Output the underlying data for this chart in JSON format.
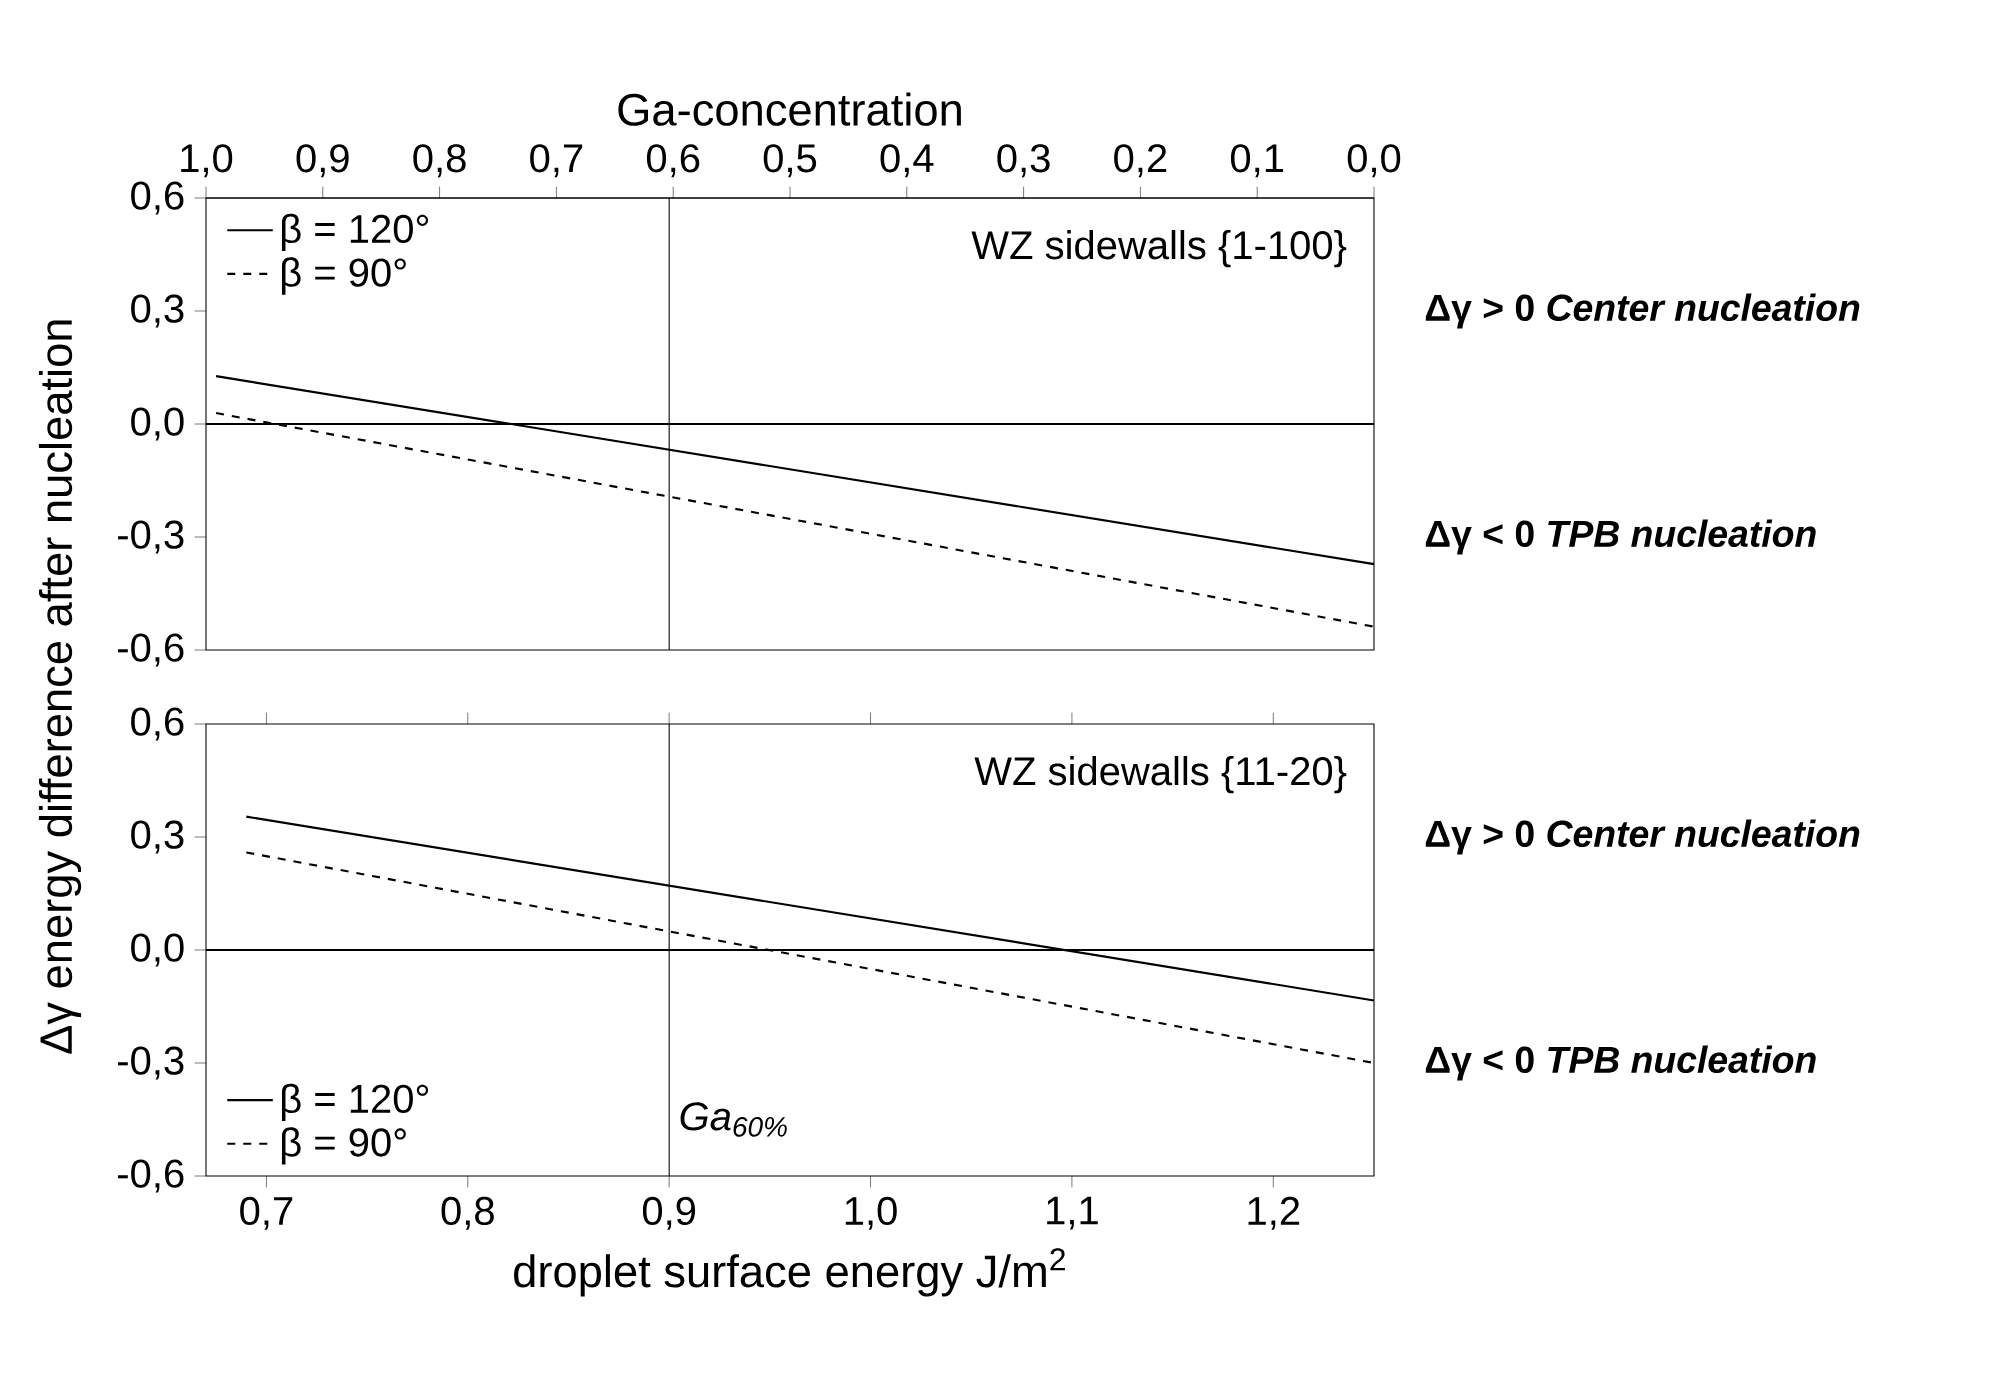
{
  "chart_data": [
    {
      "type": "line",
      "title": "WZ sidewalls {1-100}",
      "ylabel": "Δγ energy difference after nucleation",
      "x2label": "Ga-concentration",
      "xlim": [
        0.67,
        1.25
      ],
      "x2lim": [
        1.0,
        0.0
      ],
      "x2ticks": [
        {
          "value": 1.0,
          "label": "1,0"
        },
        {
          "value": 0.9,
          "label": "0,9"
        },
        {
          "value": 0.8,
          "label": "0,8"
        },
        {
          "value": 0.7,
          "label": "0,7"
        },
        {
          "value": 0.6,
          "label": "0,6"
        },
        {
          "value": 0.5,
          "label": "0,5"
        },
        {
          "value": 0.4,
          "label": "0,4"
        },
        {
          "value": 0.3,
          "label": "0,3"
        },
        {
          "value": 0.2,
          "label": "0,2"
        },
        {
          "value": 0.1,
          "label": "0,1"
        },
        {
          "value": 0.0,
          "label": "0,0"
        }
      ],
      "ylim": [
        -0.6,
        0.6
      ],
      "yticks": [
        {
          "value": -0.6,
          "label": "-0,6"
        },
        {
          "value": -0.3,
          "label": "-0,3"
        },
        {
          "value": 0.0,
          "label": "0,0"
        },
        {
          "value": 0.3,
          "label": "0,3"
        },
        {
          "value": 0.6,
          "label": "0,6"
        }
      ],
      "tick_labels": "y",
      "legend": "top left",
      "series": [
        {
          "name": "β = 120°",
          "color": "#000000",
          "line_style": "solid",
          "x": [
            0.675,
            1.25
          ],
          "values": [
            0.127,
            -0.372
          ]
        },
        {
          "name": "β =  90°",
          "color": "#000000",
          "line_style": "dashed",
          "x": [
            0.675,
            1.25
          ],
          "values": [
            0.029,
            -0.538
          ]
        }
      ],
      "ref_lines": [
        {
          "axis": "x",
          "value": 0.9
        },
        {
          "axis": "y",
          "value": 0.0
        }
      ],
      "annotations": [
        "Δγ > 0 *Center nucleation*",
        "Δγ < 0 *TPB nucleation*"
      ]
    },
    {
      "type": "line",
      "title": "WZ sidewalls {11-20}",
      "xlabel": "droplet surface energy J/m$^{2}$",
      "xlim": [
        0.67,
        1.25
      ],
      "xticks": [
        {
          "value": 0.7,
          "label": "0,7"
        },
        {
          "value": 0.8,
          "label": "0,8"
        },
        {
          "value": 0.9,
          "label": "0,9"
        },
        {
          "value": 1.0,
          "label": "1,0"
        },
        {
          "value": 1.1,
          "label": "1,1"
        },
        {
          "value": 1.2,
          "label": "1,2"
        }
      ],
      "ylim": [
        -0.6,
        0.6
      ],
      "yticks": [
        {
          "value": -0.6,
          "label": "-0,6"
        },
        {
          "value": -0.3,
          "label": "-0,3"
        },
        {
          "value": 0.0,
          "label": "0,0"
        },
        {
          "value": 0.3,
          "label": "0,3"
        },
        {
          "value": 0.6,
          "label": "0,6"
        }
      ],
      "legend": "bottom left",
      "series": [
        {
          "name": "β = 120°",
          "color": "#000000",
          "line_style": "solid",
          "x": [
            0.69,
            1.25
          ],
          "values": [
            0.354,
            -0.134
          ]
        },
        {
          "name": "β =  90°",
          "color": "#000000",
          "line_style": "dashed",
          "x": [
            0.69,
            1.25
          ],
          "values": [
            0.259,
            -0.3
          ]
        }
      ],
      "ref_lines": [
        {
          "axis": "x",
          "value": 0.9
        },
        {
          "axis": "y",
          "value": 0.0
        }
      ],
      "annotations": [
        "Δγ > 0 *Center nucleation*",
        "Δγ < 0 *TPB nucleation*",
        {
          "text": "Ga$_{60%}$",
          "x": 0.9,
          "y": -0.45
        }
      ]
    }
  ]
}
